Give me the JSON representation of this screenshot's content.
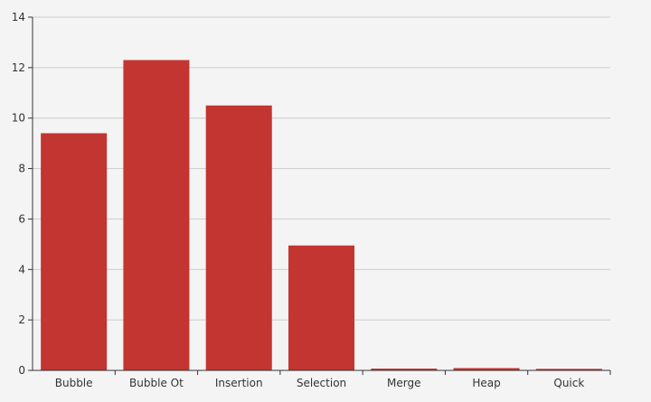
{
  "chart_data": {
    "type": "bar",
    "categories": [
      "Bubble",
      "Bubble Ot",
      "Insertion",
      "Selection",
      "Merge",
      "Heap",
      "Quick"
    ],
    "values": [
      9.4,
      12.3,
      10.5,
      4.95,
      0.07,
      0.09,
      0.06
    ],
    "ylim": [
      0,
      14
    ],
    "yticks": [
      0,
      2,
      4,
      6,
      8,
      10,
      12,
      14
    ],
    "grid": true,
    "colors": {
      "bar": "#c23531",
      "grid": "#cccccc",
      "axis": "#333333",
      "background": "#f4f4f4"
    }
  }
}
